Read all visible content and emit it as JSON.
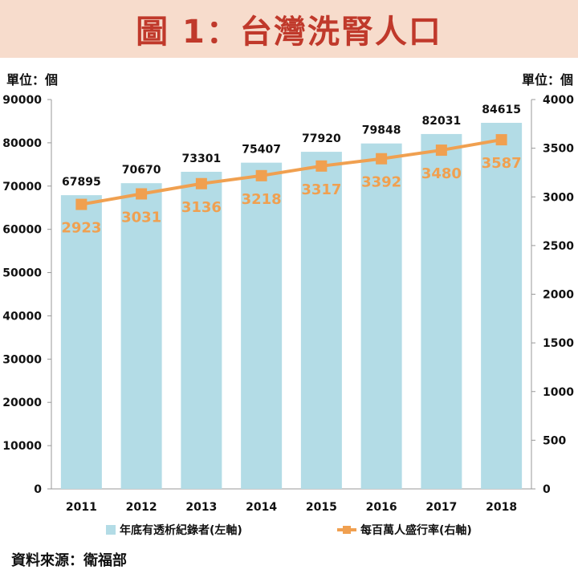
{
  "title": "圖 1：台灣洗腎人口",
  "left_unit": "單位：個",
  "right_unit": "單位：個",
  "source": "資料來源：衛福部",
  "colors": {
    "title_bg": "#f7dccc",
    "title_text": "#c0392b",
    "bar": "#b3dce6",
    "line": "#f0a050",
    "line_label": "#f0a050"
  },
  "chart_data": {
    "type": "bar",
    "categories": [
      "2011",
      "2012",
      "2013",
      "2014",
      "2015",
      "2016",
      "2017",
      "2018"
    ],
    "series": [
      {
        "name": "年底有透析紀錄者(左軸)",
        "type": "bar",
        "axis": "left",
        "values": [
          67895,
          70670,
          73301,
          75407,
          77920,
          79848,
          82031,
          84615
        ]
      },
      {
        "name": "每百萬人盛行率(右軸)",
        "type": "line",
        "axis": "right",
        "values": [
          2923,
          3031,
          3136,
          3218,
          3317,
          3392,
          3480,
          3587
        ]
      }
    ],
    "y_left": {
      "lim": [
        0,
        90000
      ],
      "ticks": [
        "0",
        "10000",
        "20000",
        "30000",
        "40000",
        "50000",
        "60000",
        "70000",
        "80000",
        "90000"
      ]
    },
    "y_right": {
      "lim": [
        0,
        4000
      ],
      "ticks": [
        "0",
        "500",
        "1000",
        "1500",
        "2000",
        "2500",
        "3000",
        "3500",
        "4000"
      ]
    },
    "legend_position": "bottom",
    "grid": false
  }
}
